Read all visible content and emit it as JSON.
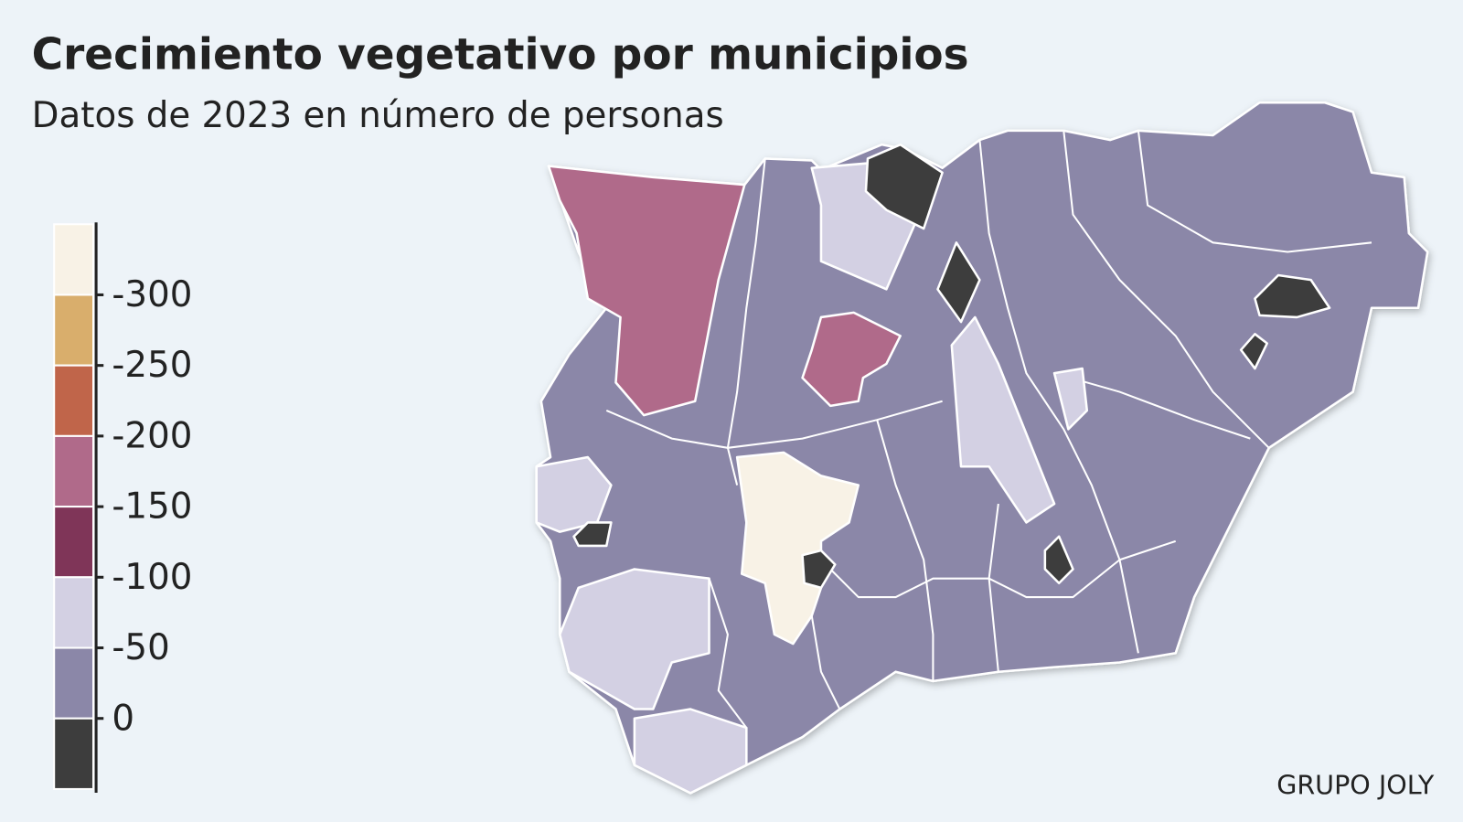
{
  "title": "Crecimiento vegetativo por municipios",
  "subtitle": "Datos de 2023 en número de personas",
  "legend": {
    "ticks": [
      -300,
      -250,
      -200,
      -150,
      -100,
      -50,
      0
    ],
    "colors": [
      "#f8f2e6",
      "#d9ae6c",
      "#c0654a",
      "#b06a8a",
      "#7f3558",
      "#d3d0e3",
      "#8b87a8",
      "#3d3d3d"
    ]
  },
  "source": "GRUPO JOLY"
}
